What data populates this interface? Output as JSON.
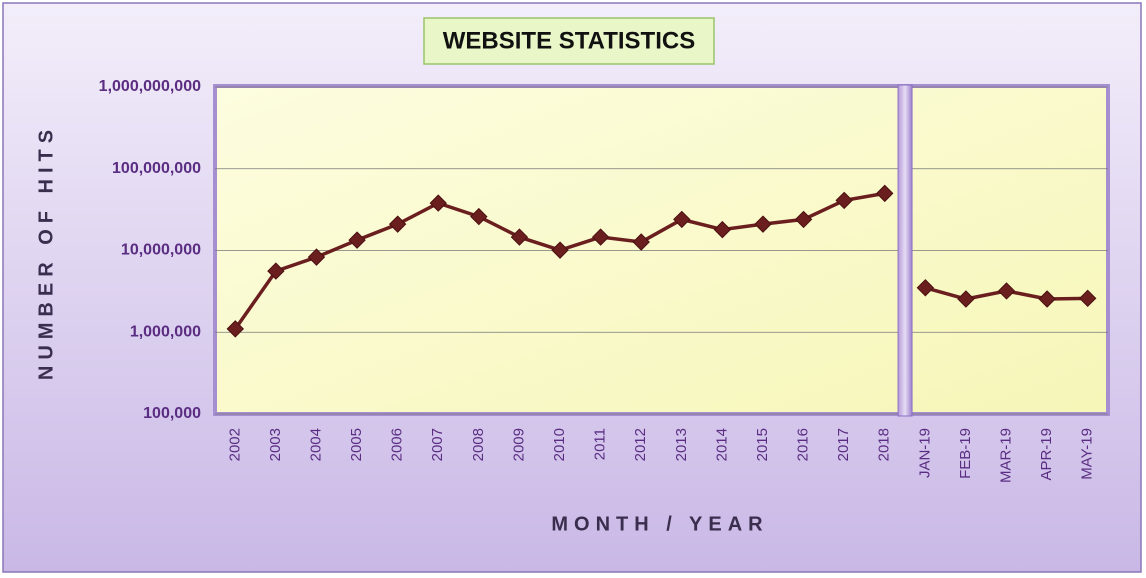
{
  "chart_data": {
    "type": "line",
    "title": "WEBSITE STATISTICS",
    "x_label": "MONTH / YEAR",
    "y_label": "NUMBER OF HITS",
    "categories": [
      "2002",
      "2003",
      "2004",
      "2005",
      "2006",
      "2007",
      "2008",
      "2009",
      "2010",
      "2011",
      "2012",
      "2013",
      "2014",
      "2015",
      "2016",
      "2017",
      "2018",
      "JAN-19",
      "FEB-19",
      "MAR-19",
      "APR-19",
      "MAY-19"
    ],
    "series": [
      {
        "color": "#6b1e1e",
        "values": [
          1100000,
          5600000,
          8300000,
          13400000,
          21000000,
          38000000,
          26000000,
          14600000,
          10100000,
          14600000,
          12700000,
          24000000,
          18000000,
          21000000,
          24000000,
          41000000,
          50000000,
          null,
          null,
          null,
          null,
          null
        ]
      },
      {
        "color": "#6b1e1e",
        "values": [
          null,
          null,
          null,
          null,
          null,
          null,
          null,
          null,
          null,
          null,
          null,
          null,
          null,
          null,
          null,
          null,
          null,
          3500000,
          2550000,
          3200000,
          2550000,
          2600000
        ]
      }
    ],
    "log_scale": true,
    "ylim": [
      100000,
      1000000000
    ],
    "yticks": [
      {
        "value": 100000,
        "label": "100,000"
      },
      {
        "value": 1000000,
        "label": "1,000,000"
      },
      {
        "value": 10000000,
        "label": "10,000,000"
      },
      {
        "value": 100000000,
        "label": "100,000,000"
      },
      {
        "value": 1000000000,
        "label": "1,000,000,000"
      }
    ],
    "grid": true
  }
}
